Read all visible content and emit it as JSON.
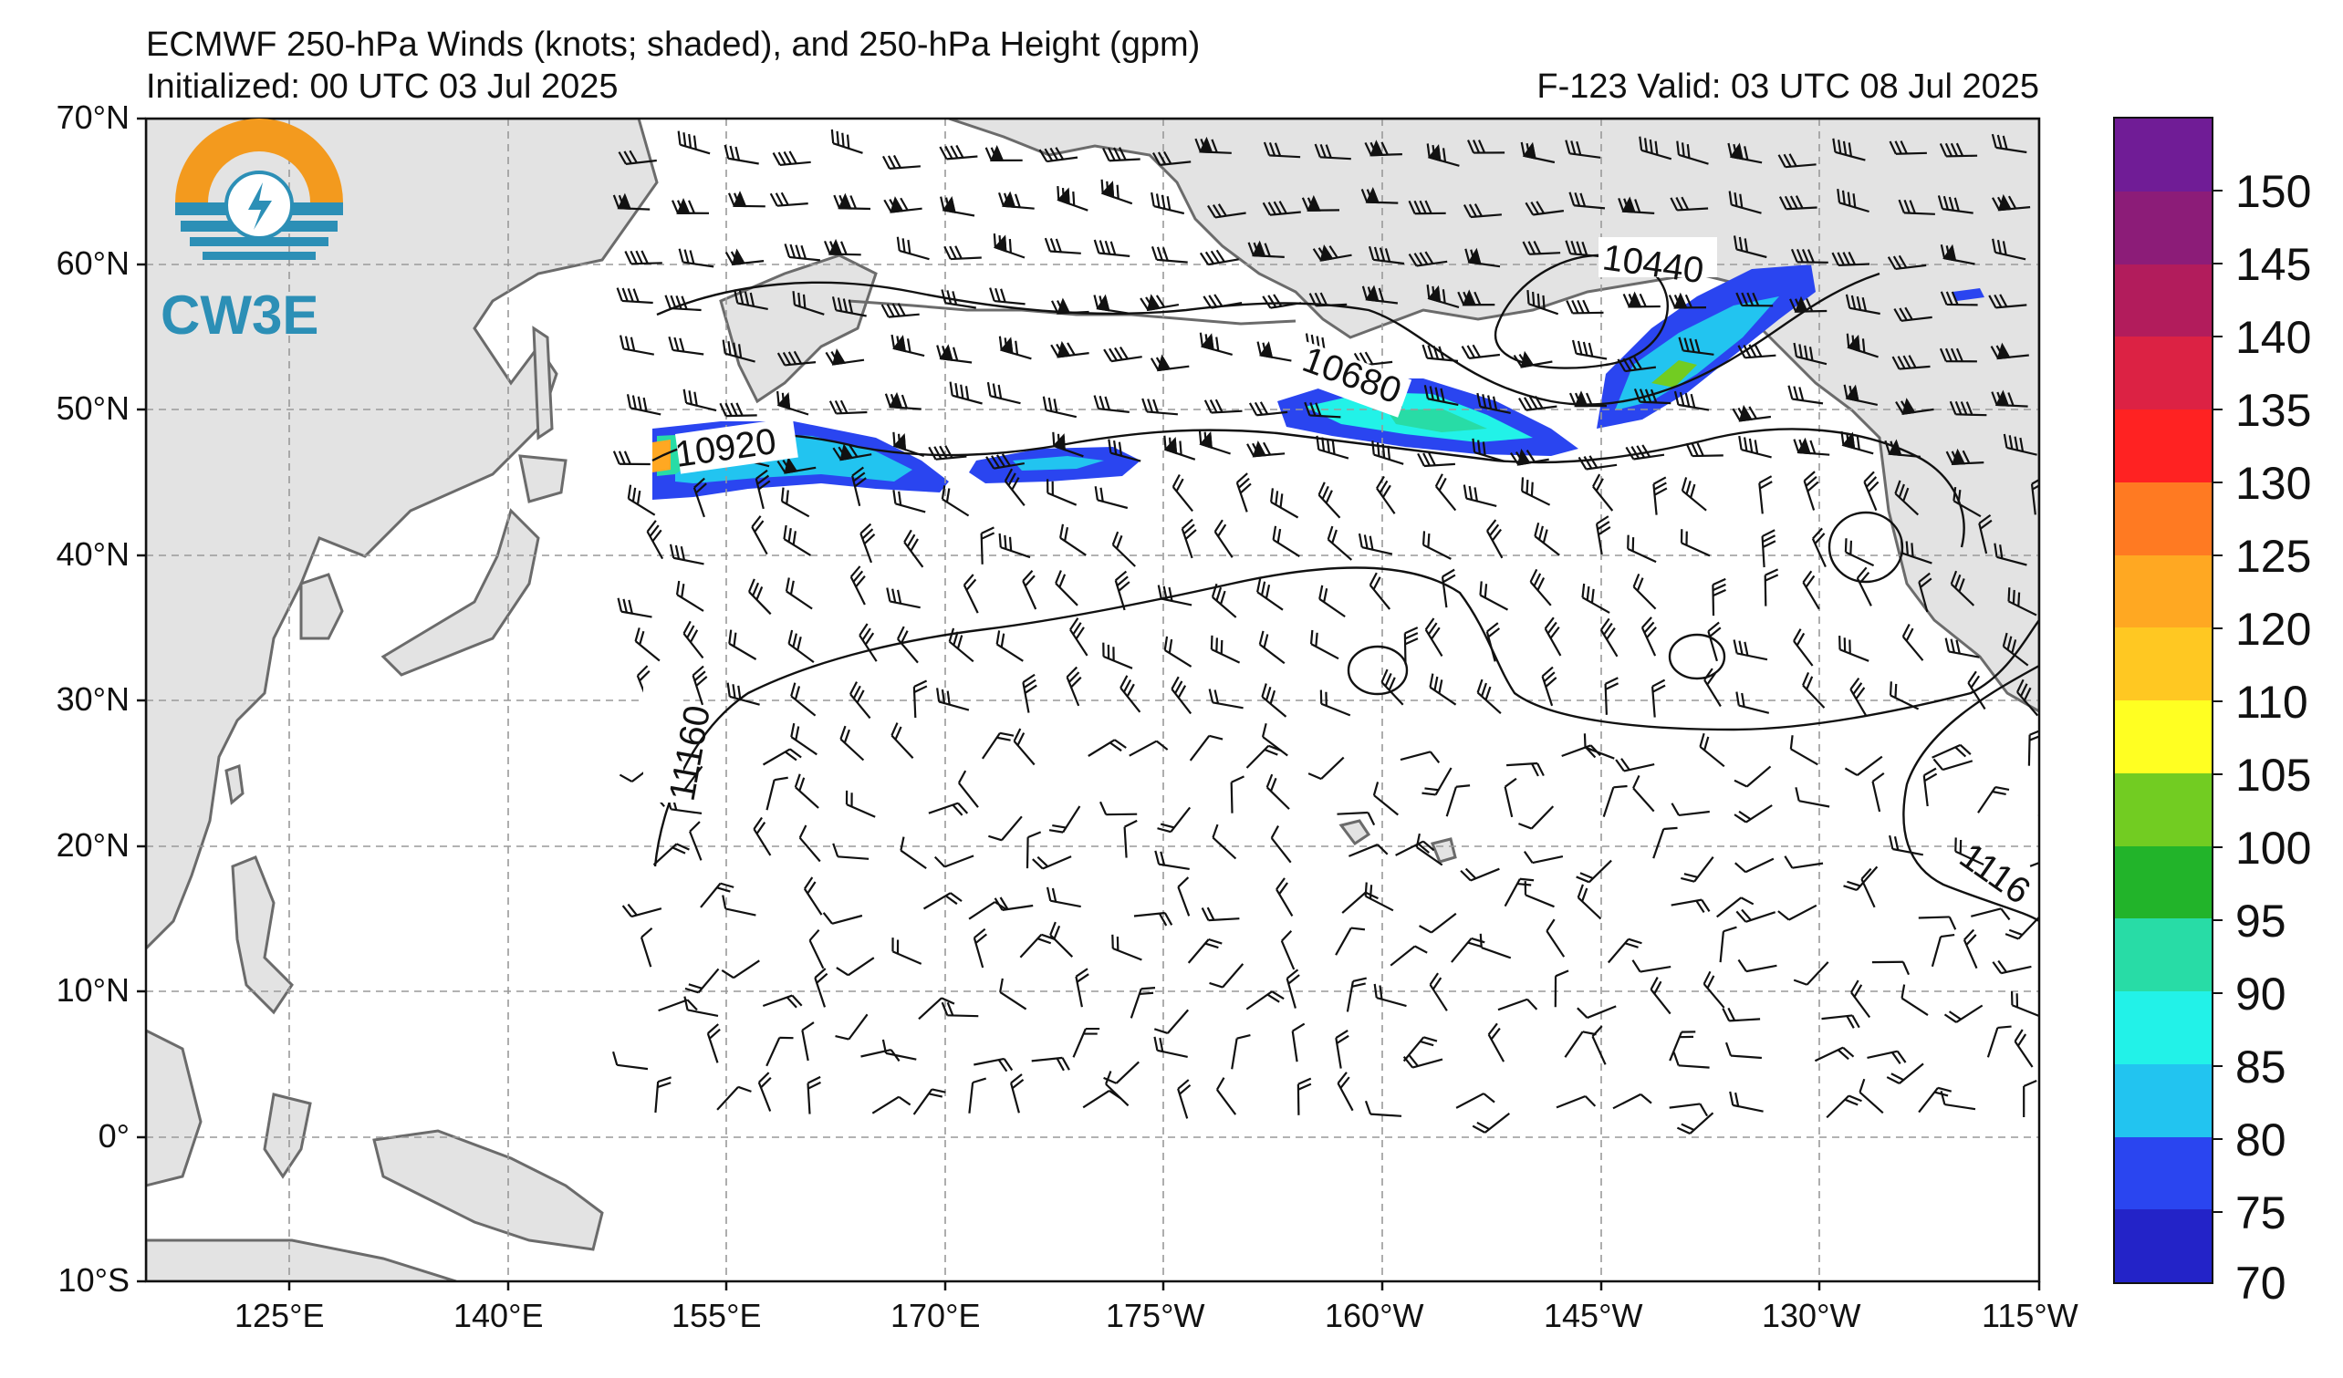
{
  "header": {
    "title": "ECMWF 250-hPa Winds (knots; shaded), and 250-hPa Height (gpm)",
    "initialized": "Initialized: 00 UTC 03 Jul 2025",
    "forecast": "F-123  Valid: 03 UTC 08 Jul 2025"
  },
  "logo": {
    "text": "CW3E",
    "colors": [
      "#f39a1e",
      "#2c8fb6"
    ]
  },
  "map": {
    "projection": "cylindrical",
    "lon_range": [
      112.5,
      245
    ],
    "lat_range": [
      -10,
      70
    ],
    "lat_labels": [
      "70°N",
      "60°N",
      "50°N",
      "40°N",
      "30°N",
      "20°N",
      "10°N",
      "0°",
      "10°S"
    ],
    "lon_labels": [
      "125°E",
      "140°E",
      "155°E",
      "170°E",
      "175°W",
      "160°W",
      "145°W",
      "130°W",
      "115°W"
    ],
    "land_color": "#e3e3e3",
    "coast_color": "#6b6b6b",
    "grid": "dashed gray",
    "contour_labels": [
      "10440",
      "10680",
      "10920",
      "11160",
      "1116"
    ]
  },
  "colorbar": {
    "labels": [
      "150",
      "145",
      "140",
      "135",
      "130",
      "125",
      "120",
      "110",
      "105",
      "100",
      "95",
      "90",
      "85",
      "80",
      "75",
      "70"
    ],
    "colors": [
      "#2323c8",
      "#2a45f0",
      "#22c4f0",
      "#22f2e8",
      "#28dca6",
      "#22b42a",
      "#72cc22",
      "#ffff22",
      "#ffc822",
      "#ffa822",
      "#ff7a22",
      "#ff2222",
      "#dc2244",
      "#b21c5c",
      "#8c1c78",
      "#701c96"
    ]
  }
}
